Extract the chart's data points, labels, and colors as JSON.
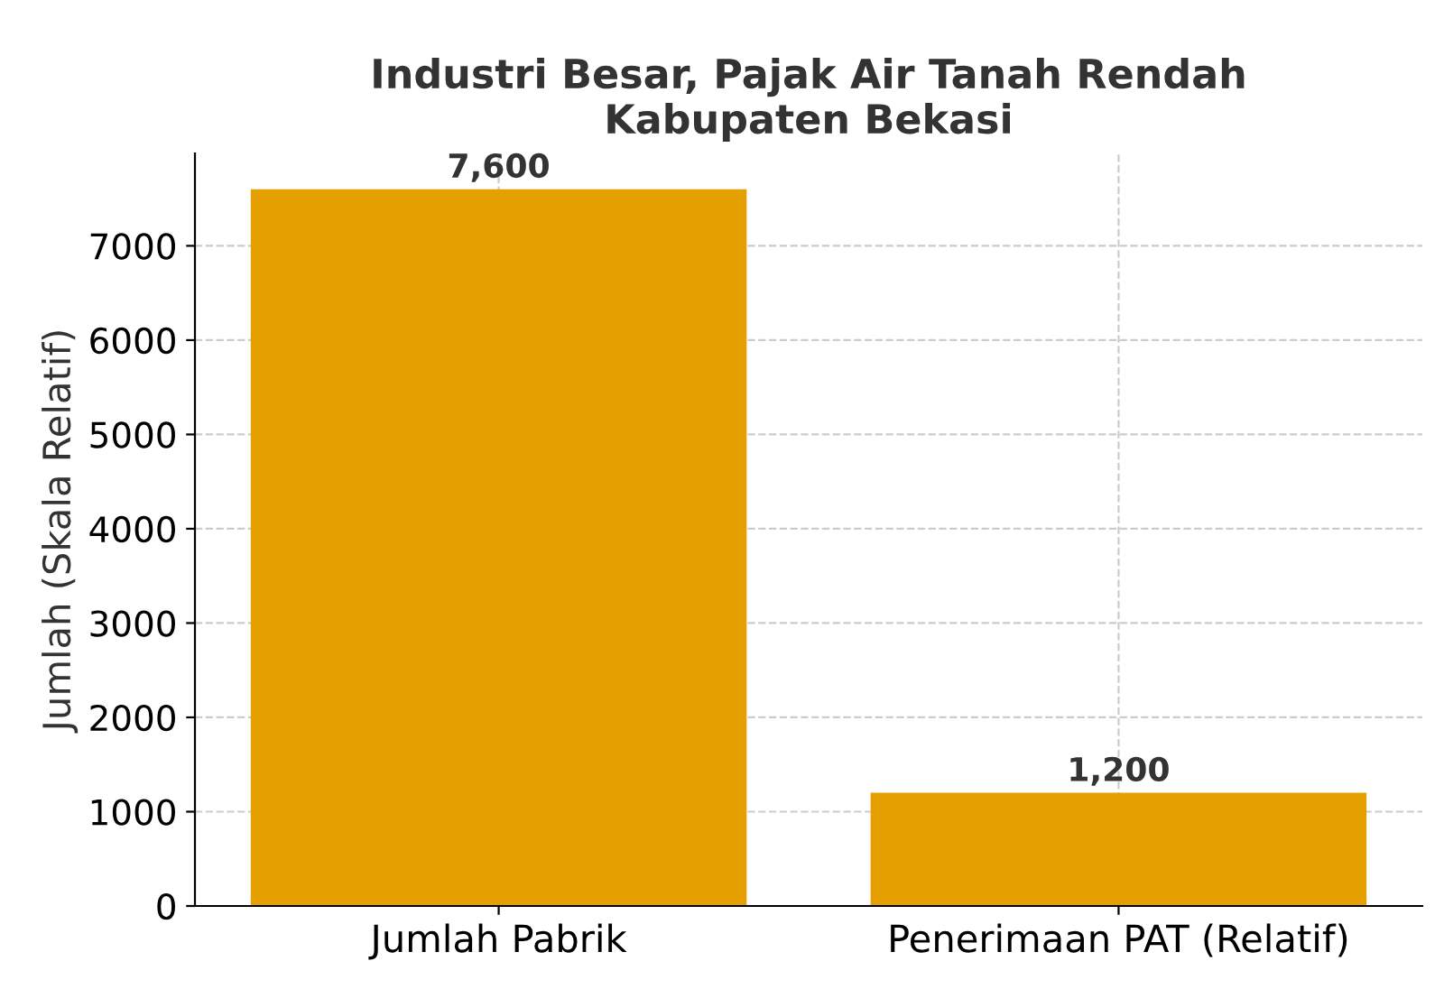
{
  "chart_data": {
    "type": "bar",
    "title": "Industri Besar, Pajak Air Tanah Rendah\nKabupaten Bekasi",
    "ylabel": "Jumlah (Skala Relatif)",
    "categories": [
      "Jumlah Pabrik",
      "Penerimaan PAT (Relatif)"
    ],
    "values": [
      7600,
      1200
    ],
    "color": "#e69f00",
    "value_labels": [
      "7,600",
      "1,200"
    ],
    "ylim": [
      0,
      7980
    ],
    "yticks": [
      0,
      1000,
      2000,
      3000,
      4000,
      5000,
      6000,
      7000
    ],
    "grid": true
  }
}
